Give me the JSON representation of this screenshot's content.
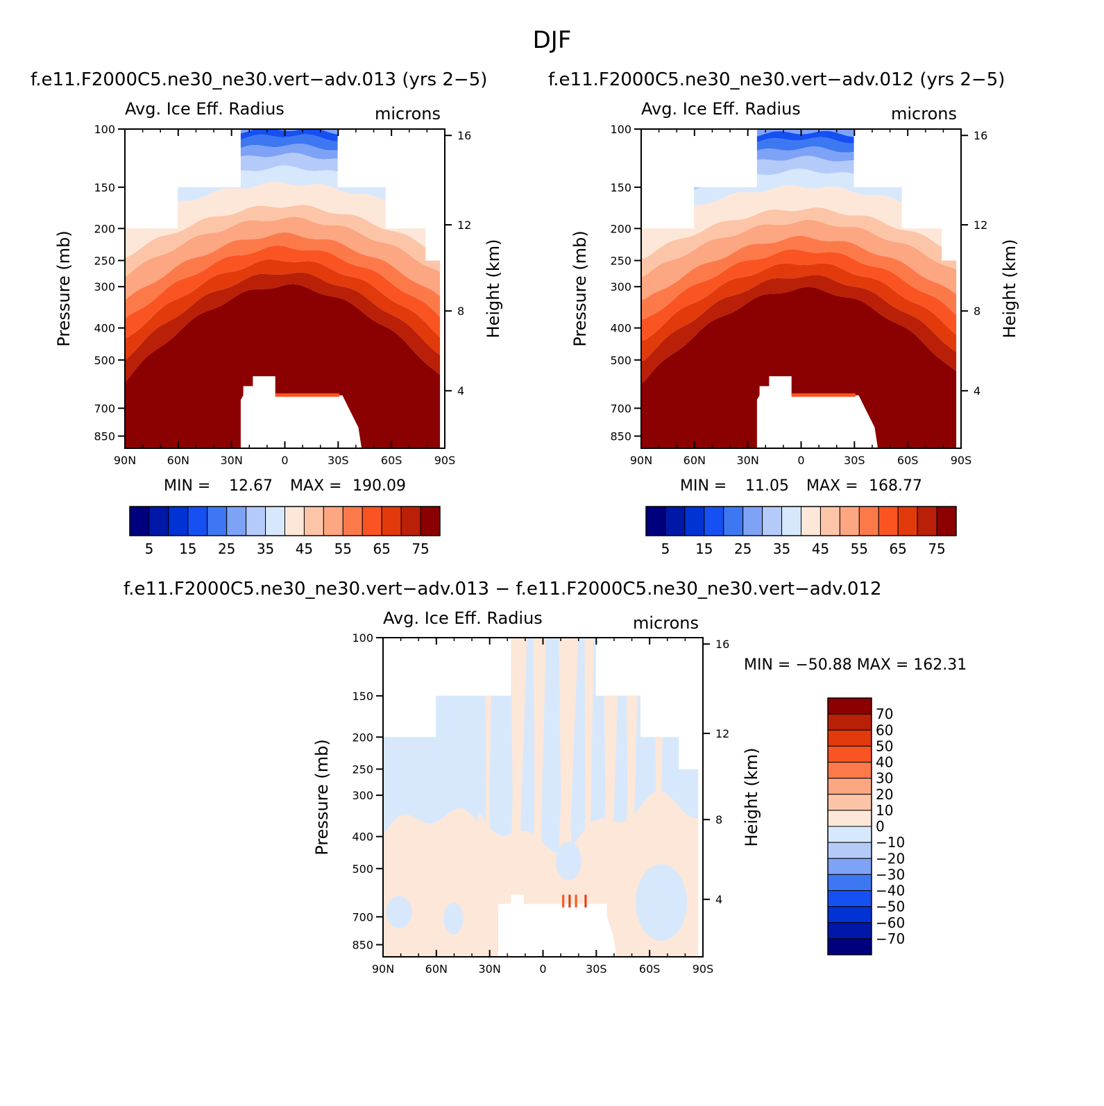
{
  "figure": {
    "title": "DJF",
    "panel1_title": "f.e11.F2000C5.ne30_ne30.vert−adv.013 (yrs 2−5)",
    "panel2_title": "f.e11.F2000C5.ne30_ne30.vert−adv.012 (yrs 2−5)",
    "panel3_title": "f.e11.F2000C5.ne30_ne30.vert−adv.013 − f.e11.F2000C5.ne30_ne30.vert−adv.012"
  },
  "chart_data": [
    {
      "type": "heatmap",
      "panel": "case-013",
      "title": "Avg. Ice Eff. Radius",
      "units": "microns",
      "ylabel": "Pressure (mb)",
      "ylabel_right": "Height (km)",
      "x_ticks": [
        "90N",
        "60N",
        "30N",
        "0",
        "30S",
        "60S",
        "90S"
      ],
      "y_ticks": [
        100,
        150,
        200,
        250,
        300,
        400,
        500,
        700,
        850
      ],
      "y_right_ticks": [
        16,
        12,
        8,
        4
      ],
      "min_label": "MIN =",
      "min_value": "12.67",
      "max_label": "MAX =",
      "max_value": "190.09",
      "colorbar_labels": [
        "5",
        "15",
        "25",
        "35",
        "45",
        "55",
        "65",
        "75"
      ]
    },
    {
      "type": "heatmap",
      "panel": "case-012",
      "title": "Avg. Ice Eff. Radius",
      "units": "microns",
      "ylabel": "Pressure (mb)",
      "ylabel_right": "Height (km)",
      "x_ticks": [
        "90N",
        "60N",
        "30N",
        "0",
        "30S",
        "60S",
        "90S"
      ],
      "y_ticks": [
        100,
        150,
        200,
        250,
        300,
        400,
        500,
        700,
        850
      ],
      "y_right_ticks": [
        16,
        12,
        8,
        4
      ],
      "min_label": "MIN =",
      "min_value": "11.05",
      "max_label": "MAX =",
      "max_value": "168.77",
      "colorbar_labels": [
        "5",
        "15",
        "25",
        "35",
        "45",
        "55",
        "65",
        "75"
      ]
    },
    {
      "type": "heatmap",
      "panel": "difference",
      "title": "Avg. Ice Eff. Radius",
      "units": "microns",
      "ylabel": "Pressure (mb)",
      "ylabel_right": "Height (km)",
      "x_ticks": [
        "90N",
        "60N",
        "30N",
        "0",
        "30S",
        "60S",
        "90S"
      ],
      "y_ticks": [
        100,
        150,
        200,
        250,
        300,
        400,
        500,
        700,
        850
      ],
      "y_right_ticks": [
        16,
        12,
        8,
        4
      ],
      "minmax_text": "MIN = −50.88   MAX = 162.31",
      "colorbar_labels": [
        "70",
        "60",
        "50",
        "40",
        "30",
        "20",
        "10",
        "0",
        "−10",
        "−20",
        "−30",
        "−40",
        "−50",
        "−60",
        "−70"
      ]
    }
  ],
  "colors": {
    "seq": [
      "#00007f",
      "#0018a8",
      "#0033d4",
      "#1650f2",
      "#3d78f2",
      "#7ea2f6",
      "#b4cbfa",
      "#d7e8fc",
      "#fde7d8",
      "#fcc5a7",
      "#fca682",
      "#fc7a4a",
      "#fb5423",
      "#e23a0b",
      "#b92007",
      "#8b0000"
    ],
    "diff": [
      "#8b0000",
      "#b92007",
      "#e23a0b",
      "#fb5423",
      "#fc7a4a",
      "#fca682",
      "#fcc5a7",
      "#fde7d8",
      "#d7e8fc",
      "#b4cbfa",
      "#7ea2f6",
      "#3d78f2",
      "#1650f2",
      "#0033d4",
      "#0018a8",
      "#00007f"
    ]
  }
}
